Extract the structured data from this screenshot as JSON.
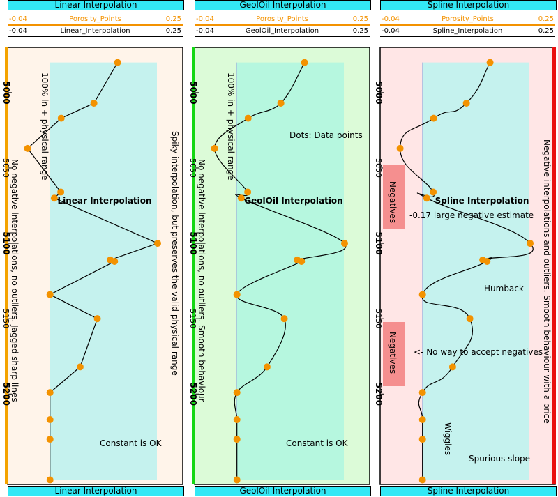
{
  "colors": {
    "tab_bg": "#33e8f5",
    "marker": "#f39200",
    "physical_range": "#c5f2ee",
    "negatives": "#f58f8f",
    "axis_line": "#000000"
  },
  "tracks": [
    {
      "id": "linear",
      "header_tab": "Linear Interpolation",
      "footer_tab": "Linear Interpolation",
      "points_scale": {
        "min": "-0.04",
        "label": "Porosity_Points",
        "max": "0.25"
      },
      "curve_scale": {
        "min": "-0.04",
        "label": "Linear_Interpolation",
        "max": "0.25"
      },
      "annotations": {
        "title": "Linear Interpolation",
        "range_note": "100% in + physical range",
        "left_note": "No negative interpolations, no outliers. Jagged sharp lines",
        "right_note": "Spiky interpolation, but preserves the valid physical range",
        "constant_note": "Constant is OK"
      }
    },
    {
      "id": "geoloil",
      "header_tab": "GeolOil Interpolation",
      "footer_tab": "GeolOil Interpolation",
      "points_scale": {
        "min": "-0.04",
        "label": "Porosity_Points",
        "max": "0.25"
      },
      "curve_scale": {
        "min": "-0.04",
        "label": "GeolOil_Interpolation",
        "max": "0.25"
      },
      "annotations": {
        "title": "GeolOil Interpolation",
        "range_note": "100% in + physical range",
        "left_note": "No negative interpolations, no outliers. Smooth behaviour",
        "dots_note": "Dots: Data points",
        "constant_note": "Constant is OK"
      }
    },
    {
      "id": "spline",
      "header_tab": "Spline Interpolation",
      "footer_tab": "Spline Interpolation",
      "points_scale": {
        "min": "-0.04",
        "label": "Porosity_Points",
        "max": "0.25"
      },
      "curve_scale": {
        "min": "-0.04",
        "label": "Spline_Interpolation",
        "max": "0.25"
      },
      "annotations": {
        "title": "Spline Interpolation",
        "negative_estimate": "-0.17 large negative estimate",
        "humback": "Humback",
        "no_negatives": "<- No way to accept negatives",
        "wiggles": "Wiggles",
        "spurious": "Spurious slope",
        "negatives_label_1": "Negatives",
        "negatives_label_2": "Negatives",
        "right_note": "Negative interpolations and outliers. Smooth behaviour with a price"
      }
    }
  ],
  "chart_data": {
    "type": "line",
    "y_axis": "depth",
    "ylim": [
      4970,
      5260
    ],
    "y_ticks": [
      "5000",
      "5050",
      "5100",
      "5150",
      "5200"
    ],
    "y_tick_values": [
      5000,
      5050,
      5100,
      5150,
      5200
    ],
    "xlim": [
      -0.04,
      0.25
    ],
    "physical_range": [
      0.0,
      0.25
    ],
    "depth_range_shaded": [
      4980,
      5257
    ],
    "points": [
      {
        "depth": 4980,
        "value": 0.157
      },
      {
        "depth": 5007,
        "value": 0.102
      },
      {
        "depth": 5017,
        "value": 0.026
      },
      {
        "depth": 5037,
        "value": -0.052
      },
      {
        "depth": 5066,
        "value": 0.025
      },
      {
        "depth": 5070,
        "value": 0.01
      },
      {
        "depth": 5100,
        "value": 0.25
      },
      {
        "depth": 5111,
        "value": 0.14
      },
      {
        "depth": 5112,
        "value": 0.15
      },
      {
        "depth": 5134,
        "value": 0.0
      },
      {
        "depth": 5150,
        "value": 0.11
      },
      {
        "depth": 5182,
        "value": 0.07
      },
      {
        "depth": 5199,
        "value": 0.0
      },
      {
        "depth": 5217,
        "value": 0.0
      },
      {
        "depth": 5230,
        "value": 0.0
      },
      {
        "depth": 5257,
        "value": 0.0
      }
    ]
  }
}
